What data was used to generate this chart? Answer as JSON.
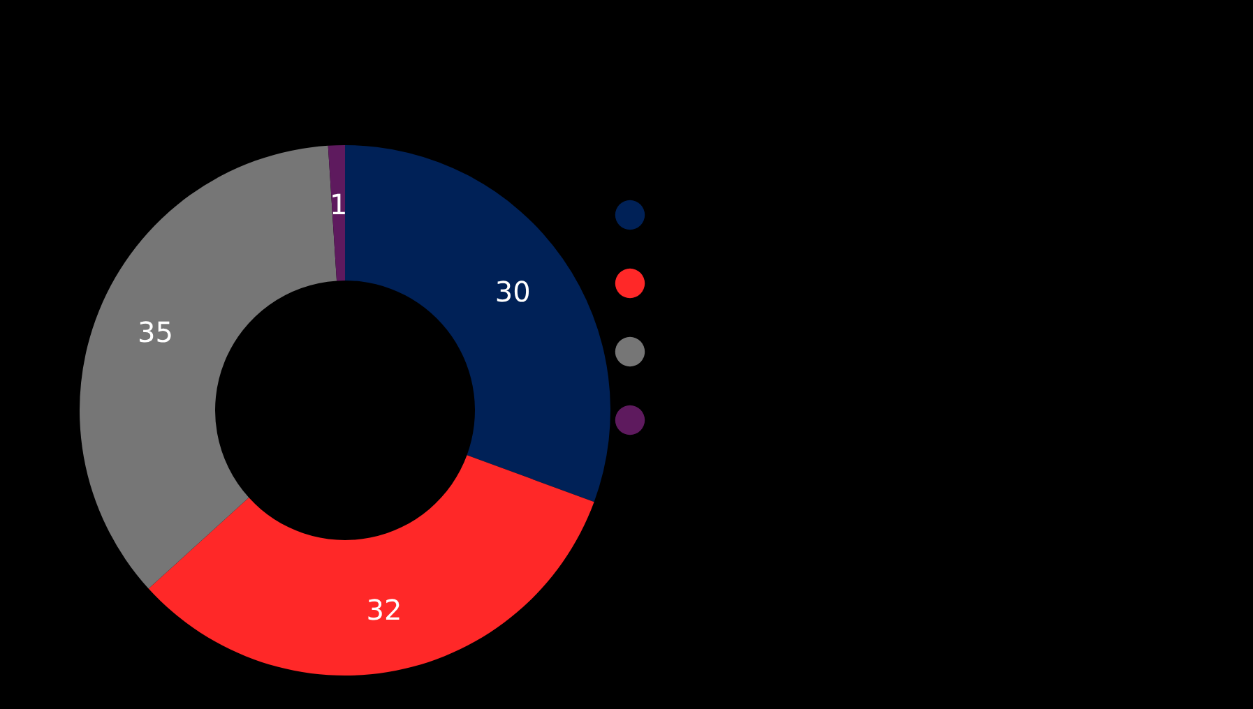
{
  "chart_data": {
    "type": "donut",
    "categories": [
      null,
      null,
      null,
      null
    ],
    "values": [
      30,
      32,
      35,
      1
    ],
    "colors": [
      "#002157",
      "#ff2828",
      "#767676",
      "#5e1a5e"
    ],
    "data_labels": true
  }
}
